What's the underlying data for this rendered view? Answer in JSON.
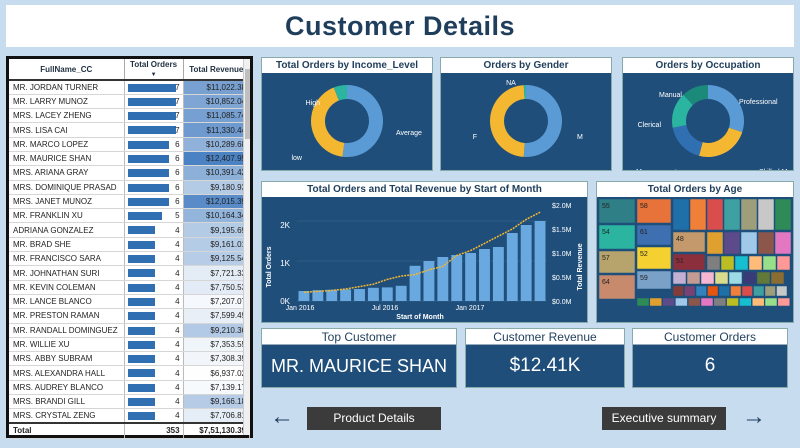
{
  "page_title": "Customer Details",
  "table": {
    "headers": [
      "FullName_CC",
      "Total Orders",
      "Total Revenue"
    ],
    "rows": [
      {
        "name": "MR. JORDAN TURNER",
        "orders": 7,
        "revenue": "$11,022.38"
      },
      {
        "name": "MR. LARRY MUNOZ",
        "orders": 7,
        "revenue": "$10,852.04"
      },
      {
        "name": "MRS. LACEY ZHENG",
        "orders": 7,
        "revenue": "$11,085.74"
      },
      {
        "name": "MRS. LISA CAI",
        "orders": 7,
        "revenue": "$11,330.44"
      },
      {
        "name": "MR. MARCO LOPEZ",
        "orders": 6,
        "revenue": "$10,289.68"
      },
      {
        "name": "MR. MAURICE SHAN",
        "orders": 6,
        "revenue": "$12,407.95"
      },
      {
        "name": "MRS. ARIANA GRAY",
        "orders": 6,
        "revenue": "$10,391.42"
      },
      {
        "name": "MRS. DOMINIQUE PRASAD",
        "orders": 6,
        "revenue": "$9,180.93"
      },
      {
        "name": "MRS. JANET MUNOZ",
        "orders": 6,
        "revenue": "$12,015.39"
      },
      {
        "name": "MR. FRANKLIN XU",
        "orders": 5,
        "revenue": "$10,164.34"
      },
      {
        "name": "ADRIANA GONZALEZ",
        "orders": 4,
        "revenue": "$9,195.69"
      },
      {
        "name": "MR. BRAD SHE",
        "orders": 4,
        "revenue": "$9,161.01"
      },
      {
        "name": "MR. FRANCISCO SARA",
        "orders": 4,
        "revenue": "$9,125.54"
      },
      {
        "name": "MR. JOHNATHAN SURI",
        "orders": 4,
        "revenue": "$7,721.33"
      },
      {
        "name": "MR. KEVIN COLEMAN",
        "orders": 4,
        "revenue": "$7,750.53"
      },
      {
        "name": "MR. LANCE BLANCO",
        "orders": 4,
        "revenue": "$7,207.07"
      },
      {
        "name": "MR. PRESTON RAMAN",
        "orders": 4,
        "revenue": "$7,599.49"
      },
      {
        "name": "MR. RANDALL DOMINGUEZ",
        "orders": 4,
        "revenue": "$9,210.36"
      },
      {
        "name": "MR. WILLIE XU",
        "orders": 4,
        "revenue": "$7,353.55"
      },
      {
        "name": "MRS. ABBY SUBRAM",
        "orders": 4,
        "revenue": "$7,308.39"
      },
      {
        "name": "MRS. ALEXANDRA HALL",
        "orders": 4,
        "revenue": "$6,937.02"
      },
      {
        "name": "MRS. AUDREY BLANCO",
        "orders": 4,
        "revenue": "$7,139.17"
      },
      {
        "name": "MRS. BRANDI GILL",
        "orders": 4,
        "revenue": "$9,166.18"
      },
      {
        "name": "MRS. CRYSTAL ZENG",
        "orders": 4,
        "revenue": "$7,706.81"
      }
    ],
    "total": {
      "label": "Total",
      "orders": "353",
      "revenue": "$7,51,130.39"
    },
    "max_orders": 7
  },
  "income_panel": {
    "title": "Total Orders by Income_Level",
    "slices": [
      {
        "label": "Average",
        "value": 52,
        "color": "#5b9bd5"
      },
      {
        "label": "low",
        "value": 42,
        "color": "#f4b731"
      },
      {
        "label": "High",
        "value": 6,
        "color": "#2bb5a0"
      }
    ]
  },
  "gender_panel": {
    "title": "Orders by Gender",
    "slices": [
      {
        "label": "M",
        "value": 51,
        "color": "#5b9bd5"
      },
      {
        "label": "F",
        "value": 48,
        "color": "#f4b731"
      },
      {
        "label": "NA",
        "value": 1,
        "color": "#2bb5a0"
      }
    ]
  },
  "occupation_panel": {
    "title": "Orders by Occupation",
    "slices": [
      {
        "label": "Professional",
        "value": 30,
        "color": "#5b9bd5"
      },
      {
        "label": "Skilled Manual",
        "value": 24,
        "color": "#f4b731"
      },
      {
        "label": "Management",
        "value": 18,
        "color": "#2f6fb2"
      },
      {
        "label": "Clerical",
        "value": 16,
        "color": "#2bb5a0"
      },
      {
        "label": "Manual",
        "value": 12,
        "color": "#1b8a7a"
      }
    ]
  },
  "combo_chart": {
    "title": "Total Orders and Total Revenue by Start of Month",
    "x_label": "Start of Month",
    "y_left_label": "Total Orders",
    "y_right_label": "Total Revenue",
    "x_ticks": [
      "Jan 2016",
      "Jul 2016",
      "Jan 2017"
    ],
    "y_left_ticks": [
      "0K",
      "1K",
      "2K"
    ],
    "y_right_ticks": [
      "$0.0M",
      "$0.5M",
      "$1.0M",
      "$1.5M",
      "$2.0M"
    ]
  },
  "age_panel": {
    "title": "Total Orders by Age",
    "labels": [
      "55",
      "58",
      "54",
      "61",
      "57",
      "52",
      "48",
      "64",
      "59",
      "51"
    ]
  },
  "kpis": [
    {
      "title": "Top Customer",
      "value": "MR. MAURICE SHAN"
    },
    {
      "title": "Customer Revenue",
      "value": "$12.41K"
    },
    {
      "title": "Customer Orders",
      "value": "6"
    }
  ],
  "nav": {
    "product_details": "Product Details",
    "executive_summary": "Executive summary",
    "back_arrow": "←",
    "forward_arrow": "→"
  },
  "chart_data": [
    {
      "type": "pie",
      "title": "Total Orders by Income_Level",
      "labels": [
        "Average",
        "low",
        "High"
      ],
      "values": [
        52,
        42,
        6
      ]
    },
    {
      "type": "pie",
      "title": "Orders by Gender",
      "labels": [
        "M",
        "F",
        "NA"
      ],
      "values": [
        51,
        48,
        1
      ]
    },
    {
      "type": "pie",
      "title": "Orders by Occupation",
      "labels": [
        "Professional",
        "Skilled Manual",
        "Management",
        "Clerical",
        "Manual"
      ],
      "values": [
        30,
        24,
        18,
        16,
        12
      ]
    },
    {
      "type": "bar",
      "title": "Total Orders and Total Revenue by Start of Month",
      "xlabel": "Start of Month",
      "ylabel": "Total Orders",
      "categories": [
        "2016-01",
        "2016-02",
        "2016-03",
        "2016-04",
        "2016-05",
        "2016-06",
        "2016-07",
        "2016-08",
        "2016-09",
        "2016-10",
        "2016-11",
        "2016-12",
        "2017-01",
        "2017-02",
        "2017-03",
        "2017-04",
        "2017-05",
        "2017-06"
      ],
      "series": [
        {
          "name": "Total Orders",
          "values": [
            250,
            270,
            280,
            290,
            300,
            330,
            340,
            380,
            880,
            1000,
            1100,
            1150,
            1200,
            1300,
            1350,
            1700,
            1900,
            2000
          ]
        },
        {
          "name": "Total Revenue",
          "values": [
            0.18,
            0.2,
            0.22,
            0.25,
            0.3,
            0.35,
            0.45,
            0.52,
            0.55,
            0.65,
            0.72,
            0.95,
            1.05,
            1.2,
            1.35,
            1.5,
            1.7,
            1.85
          ]
        }
      ],
      "ylim": [
        0,
        2400
      ]
    }
  ]
}
